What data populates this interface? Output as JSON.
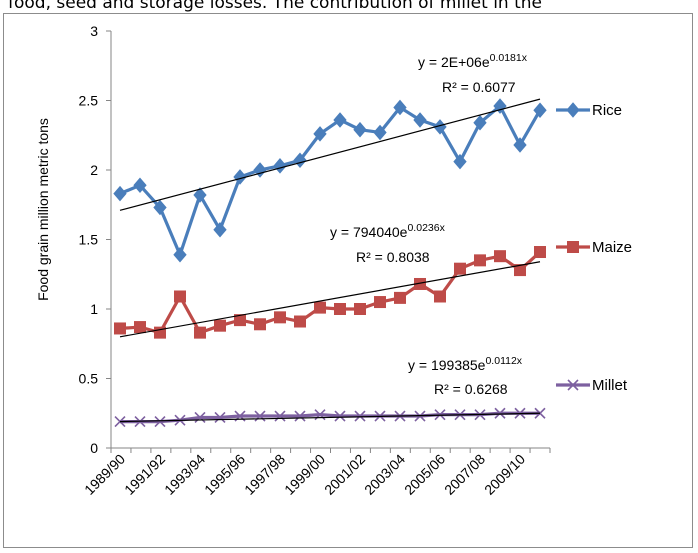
{
  "caption": "food, seed and storage losses. The contribution of millet in the",
  "chart_data": {
    "type": "line",
    "ylabel": "Food grain million metric tons",
    "ylim": [
      0,
      3
    ],
    "yticks": [
      "0",
      "0.5",
      "1",
      "1.5",
      "2",
      "2.5",
      "3"
    ],
    "x_tick_labels": [
      "1989/90",
      "1991/92",
      "1993/94",
      "1995/96",
      "1997/98",
      "1999/00",
      "2001/02",
      "2003/04",
      "2005/06",
      "2007/08",
      "2009/10"
    ],
    "series": [
      {
        "name": "Rice",
        "color": "#4a7ebb",
        "marker": "diamond",
        "values": [
          1.83,
          1.89,
          1.73,
          1.39,
          1.82,
          1.57,
          1.95,
          2.0,
          2.03,
          2.07,
          2.26,
          2.36,
          2.29,
          2.27,
          2.45,
          2.36,
          2.31,
          2.06,
          2.34,
          2.46,
          2.18,
          2.43
        ],
        "trend": {
          "start": 1.71,
          "end": 2.51
        },
        "equation": "y = 2E+06e",
        "exponent": "0.0181x",
        "r2": "R² = 0.6077"
      },
      {
        "name": "Maize",
        "color": "#be4b48",
        "marker": "square",
        "values": [
          0.86,
          0.87,
          0.83,
          1.09,
          0.83,
          0.88,
          0.92,
          0.89,
          0.94,
          0.91,
          1.01,
          1.0,
          1.0,
          1.05,
          1.08,
          1.18,
          1.09,
          1.29,
          1.35,
          1.38,
          1.28,
          1.41
        ],
        "trend": {
          "start": 0.8,
          "end": 1.34
        },
        "equation": "y = 794040e",
        "exponent": "0.0236x",
        "r2": "R² = 0.8038"
      },
      {
        "name": "Millet",
        "color": "#7d60a0",
        "marker": "x",
        "values": [
          0.19,
          0.19,
          0.19,
          0.2,
          0.22,
          0.22,
          0.23,
          0.23,
          0.23,
          0.23,
          0.24,
          0.23,
          0.23,
          0.23,
          0.23,
          0.23,
          0.24,
          0.24,
          0.24,
          0.25,
          0.25,
          0.25
        ],
        "trend": {
          "start": 0.19,
          "end": 0.25
        },
        "equation": "y = 199385e",
        "exponent": "0.0112x",
        "r2": "R² = 0.6268"
      }
    ],
    "grid": false,
    "legend_position": "right"
  }
}
